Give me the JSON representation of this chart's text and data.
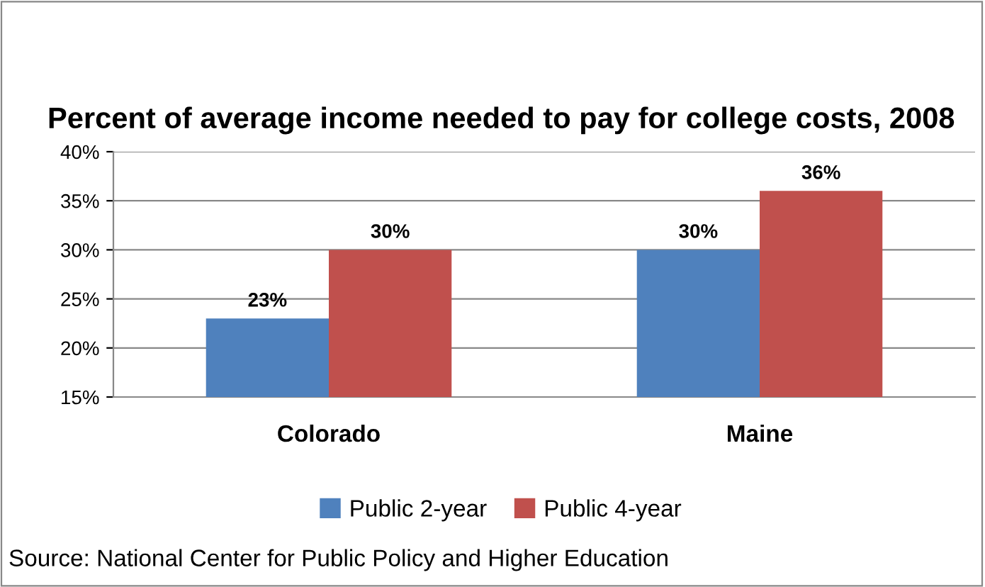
{
  "chart_data": {
    "type": "bar",
    "title": "Percent of average income needed to pay for college costs, 2008",
    "categories": [
      "Colorado",
      "Maine"
    ],
    "series": [
      {
        "name": "Public 2-year",
        "color": "#4f81bd",
        "values": [
          23,
          30
        ],
        "value_labels": [
          "23%",
          "30%"
        ]
      },
      {
        "name": "Public 4-year",
        "color": "#c0504d",
        "values": [
          30,
          36
        ],
        "value_labels": [
          "30%",
          "36%"
        ]
      }
    ],
    "ylim": [
      15,
      40
    ],
    "yticks": [
      {
        "value": 15,
        "label": "15%"
      },
      {
        "value": 20,
        "label": "20%"
      },
      {
        "value": 25,
        "label": "25%"
      },
      {
        "value": 30,
        "label": "30%"
      },
      {
        "value": 35,
        "label": "35%"
      },
      {
        "value": 40,
        "label": "40%"
      }
    ],
    "grid": "y",
    "legend": "bottom",
    "annotations": [
      "Source: National Center for Public Policy and Higher Education"
    ]
  }
}
